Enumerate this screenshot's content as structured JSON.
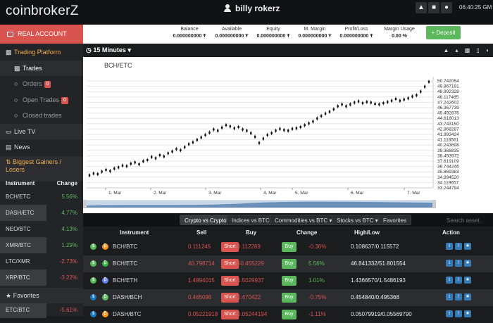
{
  "header": {
    "logo": "coinbrokerZ",
    "username": "billy  rokerz",
    "clock": "06:40:25 GM"
  },
  "sidebar": {
    "real_account": "REAL ACCOUNT",
    "trading_platform": "Trading Platform",
    "trades": "Trades",
    "orders": "Orders",
    "orders_count": "0",
    "open_trades": "Open Trades",
    "open_trades_count": "0",
    "closed_trades": "Closed trades",
    "live_tv": "Live TV",
    "news": "News",
    "gainers_title": "Biggest Gainers / Losers",
    "gainers_col_instrument": "Instrument",
    "gainers_col_change": "Change",
    "gainers": [
      {
        "name": "BCH/ETC",
        "change": "5.56%",
        "dir": "up"
      },
      {
        "name": "DASH/ETC",
        "change": "4.77%",
        "dir": "up"
      },
      {
        "name": "NEO/BTC",
        "change": "4.13%",
        "dir": "up"
      },
      {
        "name": "XMR/BTC",
        "change": "1.29%",
        "dir": "up"
      },
      {
        "name": "LTC/XMR",
        "change": "-2.73%",
        "dir": "dn"
      },
      {
        "name": "XRP/BTC",
        "change": "-3.22%",
        "dir": "dn"
      },
      {
        "name": "ETC/ETH",
        "change": "-4.31%",
        "dir": "dn"
      },
      {
        "name": "ETC/BTC",
        "change": "-5.61%",
        "dir": "dn"
      }
    ],
    "favorites": "Favorites"
  },
  "balances": [
    {
      "label": "Balance",
      "value": "0.000000000 Ŧ"
    },
    {
      "label": "Available",
      "value": "0.000000000 Ŧ"
    },
    {
      "label": "Equity",
      "value": "0.000000000 Ŧ"
    },
    {
      "label": "M. Margin",
      "value": "0.000000000 Ŧ"
    },
    {
      "label": "Profit/Loss",
      "value": "0.000000000 Ŧ"
    },
    {
      "label": "Margin Usage",
      "value": "0.00 %"
    }
  ],
  "deposit_label": "+ Deposit",
  "chart_toolbar": {
    "interval": "15 Minutes"
  },
  "chart_data": {
    "type": "line",
    "title": "BCH/ETC",
    "x_ticks": [
      "1. Mar",
      "2. Mar",
      "3. Mar",
      "4. Mar",
      "5. Mar",
      "6. Mar",
      "7. Mar"
    ],
    "y_ticks": [
      "50.742054",
      "49.867191",
      "48.992328",
      "48.117465",
      "47.242602",
      "46.367739",
      "45.492876",
      "44.618013",
      "43.743150",
      "42.868287",
      "41.993424",
      "41.118561",
      "40.243698",
      "39.368835",
      "38.493972",
      "37.619109",
      "36.744246",
      "35.869383",
      "34.994520",
      "34.119657",
      "33.244794"
    ],
    "ylim": [
      33.244794,
      50.742054
    ],
    "last_label": "50.742054",
    "series_values": [
      35.3,
      35.6,
      35.5,
      35.9,
      36.2,
      36.0,
      36.4,
      36.6,
      36.9,
      36.8,
      37.2,
      37.4,
      37.1,
      37.6,
      37.8,
      38.3,
      38.1,
      38.6,
      38.4,
      38.9,
      39.2,
      39.6,
      39.4,
      39.9,
      40.4,
      40.7,
      41.1,
      41.5,
      41.9,
      42.3,
      42.8,
      42.6,
      43.1,
      43.5,
      43.3,
      43.0,
      43.2,
      42.8,
      42.6,
      42.2,
      41.6,
      40.6,
      41.3,
      41.9,
      42.2,
      42.6,
      42.9,
      42.7,
      42.6,
      42.9,
      43.0,
      43.2,
      43.5,
      43.8,
      44.1,
      44.6,
      45.0,
      45.4,
      45.7,
      46.1,
      46.6,
      46.9,
      46.6,
      46.9,
      47.2,
      47.4,
      47.1,
      47.3,
      47.2,
      47.0,
      46.9,
      47.1,
      47.3,
      47.5,
      47.8,
      47.5,
      47.7,
      47.9,
      48.2,
      48.4,
      49.0,
      49.8,
      50.6
    ]
  },
  "market_tabs": [
    {
      "label": "Crypto vs Crypto",
      "active": true
    },
    {
      "label": "Indices vs BTC",
      "active": false
    },
    {
      "label": "Commodities vs BTC ▾",
      "active": false
    },
    {
      "label": "Stocks vs BTC ▾",
      "active": false
    },
    {
      "label": "Favorites",
      "active": false
    }
  ],
  "search_placeholder": "Search asset...",
  "table_headers": {
    "instrument": "Instrument",
    "sell": "Sell",
    "buy": "Buy",
    "change": "Change",
    "highlow": "High/Low",
    "action": "Action"
  },
  "short_label": "Short",
  "buy_label": "Buy",
  "instruments": [
    {
      "name": "BCH/BTC",
      "sell": "0.111245",
      "buy": "0.112269",
      "change": "-0.36%",
      "dir": "dn",
      "highlow": "0.108637/0.115572",
      "ic1": "#5cb85c",
      "ic2": "#f7931a"
    },
    {
      "name": "BCH/ETC",
      "sell": "40.798714",
      "buy": "50.455229",
      "change": "5.56%",
      "dir": "up",
      "highlow": "46.841332/51.801554",
      "ic1": "#5cb85c",
      "ic2": "#3ab03e"
    },
    {
      "name": "BCH/ETH",
      "sell": "1.4894015",
      "buy": "1.5029937",
      "change": "1.01%",
      "dir": "up",
      "highlow": "1.4366570/1.5486193",
      "ic1": "#5cb85c",
      "ic2": "#627eea"
    },
    {
      "name": "DASH/BCH",
      "sell": "0.465098",
      "buy": "0.470422",
      "change": "-0.75%",
      "dir": "dn",
      "highlow": "0.454840/0.495368",
      "ic1": "#1c75bc",
      "ic2": "#5cb85c"
    },
    {
      "name": "DASH/BTC",
      "sell": "0.05221918",
      "buy": "0.05244194",
      "change": "-1.11%",
      "dir": "dn",
      "highlow": "0.05079919/0.05569790",
      "ic1": "#1c75bc",
      "ic2": "#f7931a"
    }
  ]
}
